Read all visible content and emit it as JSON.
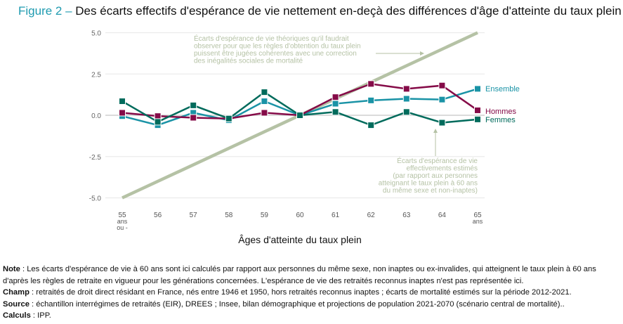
{
  "title": {
    "figure": "Figure 2 –",
    "text": "Des écarts effectifs d'espérance de vie nettement en-deçà des différences d'âge d'atteinte du taux plein"
  },
  "chart_data": {
    "type": "line",
    "xlabel": "Âges d'atteinte du taux plein",
    "ylabel": "",
    "x": [
      55,
      56,
      57,
      58,
      59,
      60,
      61,
      62,
      63,
      64,
      65
    ],
    "x_tick_labels": [
      [
        "55",
        "ans",
        "ou -"
      ],
      [
        "56"
      ],
      [
        "57"
      ],
      [
        "58"
      ],
      [
        "59"
      ],
      [
        "60"
      ],
      [
        "61"
      ],
      [
        "62"
      ],
      [
        "63"
      ],
      [
        "64"
      ],
      [
        "65",
        "ans"
      ]
    ],
    "y_ticks": [
      5.0,
      2.5,
      0.0,
      -2.5,
      -5.0
    ],
    "y_tick_labels": [
      "5.0",
      "2.5",
      "0.0",
      "-2.5",
      "-5.0"
    ],
    "ylim": [
      -5.0,
      5.0
    ],
    "grid": true,
    "series": [
      {
        "name": "Ensemble",
        "color": "#1a93a6",
        "values": [
          -0.05,
          -0.6,
          0.15,
          -0.3,
          0.85,
          0,
          0.7,
          0.9,
          1.0,
          0.95,
          1.6
        ]
      },
      {
        "name": "Hommes",
        "color": "#850b48",
        "values": [
          0.15,
          -0.05,
          -0.15,
          -0.2,
          0.15,
          0,
          1.1,
          1.9,
          1.6,
          1.8,
          0.3
        ]
      },
      {
        "name": "Femmes",
        "color": "#006b5c",
        "values": [
          0.85,
          -0.4,
          0.6,
          -0.2,
          1.4,
          0,
          0.2,
          -0.6,
          0.2,
          -0.45,
          -0.25
        ]
      }
    ],
    "reference_line": {
      "color": "#b5c2a5",
      "x": [
        55,
        65
      ],
      "values": [
        -5,
        5
      ]
    },
    "annotations": [
      {
        "lines": [
          "Écarts d'espérance de vie théoriques qu'il faudrait",
          "observer pour que les règles d'obtention du taux plein",
          "puissent être jugées cohérentes avec une correction",
          "des inégalités sociales de mortalité"
        ]
      },
      {
        "lines": [
          "Écarts d'espérance de vie",
          "effectivements estimés",
          "(par rapport aux personnes",
          "atteignant le taux plein à 60 ans",
          "du même sexe et non-inaptes)"
        ]
      }
    ]
  },
  "notes": {
    "note_label": "Note",
    "note": " : Les écarts d'espérance de vie à 60 ans sont ici calculés par rapport aux personnes du même sexe, non inaptes ou ex-invalides, qui atteignent le taux plein à 60 ans d'après les règles de retraite en vigueur pour les générations concernées. L'espérance de vie des retraités reconnus inaptes n'est pas représentée ici.",
    "champ_label": "Champ",
    "champ": " : retraités de droit direct résidant en France, nés entre 1946 et 1950, hors retraités reconnus inaptes ; écarts de mortalité estimés sur la période 2012-2021.",
    "source_label": "Source",
    "source": " : échantillon interrégimes de retraités (EIR), DREES ; Insee, bilan démographique et projections de population 2021-2070 (scénario central de mortalité)..",
    "calculs_label": "Calculs",
    "calculs": " : IPP."
  }
}
